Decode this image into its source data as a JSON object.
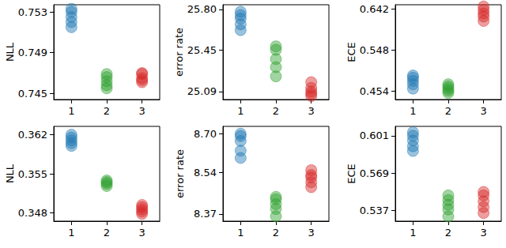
{
  "chart_data": [
    {
      "type": "scatter",
      "y_label": "NLL",
      "categories": [
        "1",
        "2",
        "3"
      ],
      "grid": false,
      "ylim": [
        0.7444,
        0.7537
      ],
      "yticks": [
        0.745,
        0.749,
        0.753
      ],
      "series": [
        {
          "color": "#1f77b4",
          "x": [
            "1",
            "1",
            "1",
            "1",
            "1"
          ],
          "values": [
            0.7515,
            0.752,
            0.7525,
            0.753,
            0.7533
          ]
        },
        {
          "color": "#2ca02c",
          "x": [
            "2",
            "2",
            "2",
            "2",
            "2"
          ],
          "values": [
            0.7455,
            0.7458,
            0.7462,
            0.7466,
            0.7469
          ]
        },
        {
          "color": "#d62728",
          "x": [
            "3",
            "3",
            "3",
            "3",
            "3"
          ],
          "values": [
            0.7461,
            0.7463,
            0.7465,
            0.7469,
            0.747
          ]
        }
      ]
    },
    {
      "type": "scatter",
      "y_label": "error rate",
      "categories": [
        "1",
        "2",
        "3"
      ],
      "grid": false,
      "ylim": [
        25.02,
        25.84
      ],
      "yticks": [
        25.09,
        25.45,
        {
          "value": 25.8,
          "label": "25.80"
        }
      ],
      "series": [
        {
          "color": "#1f77b4",
          "x": [
            "1",
            "1",
            "1",
            "1",
            "1"
          ],
          "values": [
            25.62,
            25.67,
            25.72,
            25.75,
            25.78
          ]
        },
        {
          "color": "#2ca02c",
          "x": [
            "2",
            "2",
            "2",
            "2",
            "2"
          ],
          "values": [
            25.22,
            25.3,
            25.37,
            25.45,
            25.48
          ]
        },
        {
          "color": "#d62728",
          "x": [
            "3",
            "3",
            "3",
            "3",
            "3"
          ],
          "values": [
            25.05,
            25.07,
            25.09,
            25.12,
            25.17
          ]
        }
      ]
    },
    {
      "type": "scatter",
      "y_label": "ECE",
      "categories": [
        "1",
        "2",
        "3"
      ],
      "grid": false,
      "ylim": [
        0.435,
        0.652
      ],
      "yticks": [
        0.454,
        0.548,
        0.642
      ],
      "series": [
        {
          "color": "#1f77b4",
          "x": [
            "1",
            "1",
            "1",
            "1",
            "1"
          ],
          "values": [
            0.46,
            0.47,
            0.478,
            0.485,
            0.49
          ]
        },
        {
          "color": "#2ca02c",
          "x": [
            "2",
            "2",
            "2",
            "2",
            "2"
          ],
          "values": [
            0.45,
            0.455,
            0.46,
            0.465,
            0.47
          ]
        },
        {
          "color": "#d62728",
          "x": [
            "3",
            "3",
            "3",
            "3",
            "3"
          ],
          "values": [
            0.615,
            0.625,
            0.632,
            0.64,
            0.648
          ]
        }
      ]
    },
    {
      "type": "scatter",
      "y_label": "NLL",
      "categories": [
        "1",
        "2",
        "3"
      ],
      "grid": false,
      "ylim": [
        0.3465,
        0.3635
      ],
      "yticks": [
        0.348,
        0.355,
        0.362
      ],
      "series": [
        {
          "color": "#1f77b4",
          "x": [
            "1",
            "1",
            "1",
            "1",
            "1"
          ],
          "values": [
            0.36,
            0.3605,
            0.361,
            0.3615,
            0.362
          ]
        },
        {
          "color": "#2ca02c",
          "x": [
            "2",
            "2",
            "2",
            "2"
          ],
          "values": [
            0.3528,
            0.3532,
            0.3535,
            0.3538
          ]
        },
        {
          "color": "#d62728",
          "x": [
            "3",
            "3",
            "3",
            "3",
            "3"
          ],
          "values": [
            0.3478,
            0.3482,
            0.3486,
            0.349,
            0.3494
          ]
        }
      ]
    },
    {
      "type": "scatter",
      "y_label": "error rate",
      "categories": [
        "1",
        "2",
        "3"
      ],
      "grid": false,
      "ylim": [
        8.34,
        8.73
      ],
      "yticks": [
        8.37,
        8.54,
        {
          "value": 8.7,
          "label": "8.70"
        }
      ],
      "series": [
        {
          "color": "#1f77b4",
          "x": [
            "1",
            "1",
            "1",
            "1",
            "1"
          ],
          "values": [
            8.6,
            8.63,
            8.67,
            8.69,
            8.7
          ]
        },
        {
          "color": "#2ca02c",
          "x": [
            "2",
            "2",
            "2",
            "2",
            "2"
          ],
          "values": [
            8.36,
            8.39,
            8.41,
            8.43,
            8.44
          ]
        },
        {
          "color": "#d62728",
          "x": [
            "3",
            "3",
            "3",
            "3",
            "3"
          ],
          "values": [
            8.48,
            8.5,
            8.52,
            8.53,
            8.55
          ]
        }
      ]
    },
    {
      "type": "scatter",
      "y_label": "ECE",
      "categories": [
        "1",
        "2",
        "3"
      ],
      "grid": false,
      "ylim": [
        0.528,
        0.609
      ],
      "yticks": [
        0.537,
        0.569,
        0.601
      ],
      "series": [
        {
          "color": "#1f77b4",
          "x": [
            "1",
            "1",
            "1",
            "1",
            "1"
          ],
          "values": [
            0.588,
            0.592,
            0.597,
            0.601,
            0.604
          ]
        },
        {
          "color": "#2ca02c",
          "x": [
            "2",
            "2",
            "2",
            "2",
            "2"
          ],
          "values": [
            0.532,
            0.538,
            0.542,
            0.546,
            0.55
          ]
        },
        {
          "color": "#d62728",
          "x": [
            "3",
            "3",
            "3",
            "3",
            "3"
          ],
          "values": [
            0.535,
            0.54,
            0.545,
            0.55,
            0.553
          ]
        }
      ]
    }
  ]
}
